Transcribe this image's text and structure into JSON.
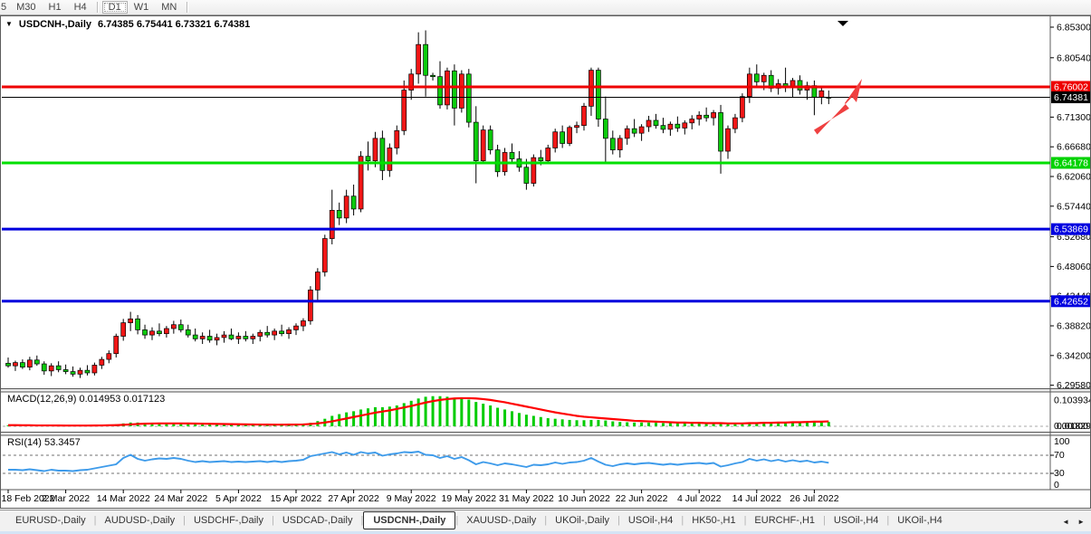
{
  "toolbar": {
    "timeframes": [
      "5",
      "M30",
      "H1",
      "H4",
      "D1",
      "W1",
      "MN"
    ],
    "active": "D1"
  },
  "window": {
    "dropdown_marker": "▼",
    "title_symbol": "USDCNH-,Daily",
    "title_ohlc": "6.74385 6.75441 6.73321 6.74381"
  },
  "price_axis": {
    "ticks": [
      6.853,
      6.8054,
      6.713,
      6.6668,
      6.6206,
      6.5744,
      6.5268,
      6.4806,
      6.4344,
      6.3882,
      6.342,
      6.2958
    ],
    "badges": [
      {
        "label": "6.76002",
        "value": 6.76002,
        "bg": "#ee0000",
        "fg": "#ffffff"
      },
      {
        "label": "6.74381",
        "value": 6.74381,
        "bg": "#000000",
        "fg": "#ffffff"
      },
      {
        "label": "6.64178",
        "value": 6.64178,
        "bg": "#00d200",
        "fg": "#ffffff"
      },
      {
        "label": "6.53869",
        "value": 6.53869,
        "bg": "#0000e0",
        "fg": "#ffffff"
      },
      {
        "label": "6.42652",
        "value": 6.42652,
        "bg": "#0000e0",
        "fg": "#ffffff"
      }
    ]
  },
  "hlines": [
    {
      "value": 6.76002,
      "color": "#ee0000",
      "width": 3,
      "name": "resistance-line"
    },
    {
      "value": 6.74381,
      "color": "#000000",
      "width": 1,
      "name": "current-price-line"
    },
    {
      "value": 6.64178,
      "color": "#00e000",
      "width": 3,
      "name": "support-line-1"
    },
    {
      "value": 6.53869,
      "color": "#0000dd",
      "width": 3,
      "name": "support-line-2"
    },
    {
      "value": 6.42652,
      "color": "#0000dd",
      "width": 3,
      "name": "support-line-3"
    }
  ],
  "chart_data": {
    "type": "candlestick",
    "symbol": "USDCNH-",
    "timeframe": "Daily",
    "ohlc_current": {
      "open": 6.74385,
      "high": 6.75441,
      "low": 6.73321,
      "close": 6.74381
    },
    "up_color": "#f21616",
    "down_color": "#0ccb0c",
    "y_range": [
      6.2958,
      6.853
    ],
    "x_labels": [
      "18 Feb 2022",
      "2 Mar 2022",
      "14 Mar 2022",
      "24 Mar 2022",
      "5 Apr 2022",
      "15 Apr 2022",
      "27 Apr 2022",
      "9 May 2022",
      "19 May 2022",
      "31 May 2022",
      "10 Jun 2022",
      "22 Jun 2022",
      "4 Jul 2022",
      "14 Jul 2022",
      "26 Jul 2022"
    ],
    "candles": [
      [
        6.33,
        6.339,
        6.323,
        6.326
      ],
      [
        6.326,
        6.334,
        6.318,
        6.331
      ],
      [
        6.331,
        6.336,
        6.321,
        6.324
      ],
      [
        6.324,
        6.34,
        6.319,
        6.335
      ],
      [
        6.335,
        6.342,
        6.326,
        6.329
      ],
      [
        6.329,
        6.333,
        6.312,
        6.318
      ],
      [
        6.318,
        6.33,
        6.31,
        6.326
      ],
      [
        6.326,
        6.333,
        6.316,
        6.32
      ],
      [
        6.32,
        6.328,
        6.313,
        6.317
      ],
      [
        6.317,
        6.325,
        6.309,
        6.313
      ],
      [
        6.313,
        6.323,
        6.307,
        6.319
      ],
      [
        6.319,
        6.327,
        6.311,
        6.315
      ],
      [
        6.315,
        6.331,
        6.311,
        6.327
      ],
      [
        6.327,
        6.34,
        6.321,
        6.336
      ],
      [
        6.336,
        6.35,
        6.33,
        6.345
      ],
      [
        6.345,
        6.376,
        6.339,
        6.372
      ],
      [
        6.372,
        6.399,
        6.365,
        6.393
      ],
      [
        6.393,
        6.41,
        6.38,
        6.399
      ],
      [
        6.399,
        6.405,
        6.375,
        6.382
      ],
      [
        6.382,
        6.39,
        6.368,
        6.374
      ],
      [
        6.374,
        6.386,
        6.366,
        6.38
      ],
      [
        6.38,
        6.392,
        6.372,
        6.376
      ],
      [
        6.376,
        6.388,
        6.37,
        6.384
      ],
      [
        6.384,
        6.396,
        6.376,
        6.39
      ],
      [
        6.39,
        6.398,
        6.378,
        6.382
      ],
      [
        6.382,
        6.39,
        6.37,
        6.374
      ],
      [
        6.374,
        6.384,
        6.364,
        6.368
      ],
      [
        6.368,
        6.378,
        6.36,
        6.372
      ],
      [
        6.372,
        6.382,
        6.362,
        6.366
      ],
      [
        6.366,
        6.376,
        6.358,
        6.37
      ],
      [
        6.37,
        6.38,
        6.362,
        6.374
      ],
      [
        6.374,
        6.384,
        6.366,
        6.368
      ],
      [
        6.368,
        6.378,
        6.36,
        6.372
      ],
      [
        6.372,
        6.38,
        6.364,
        6.368
      ],
      [
        6.368,
        6.376,
        6.36,
        6.372
      ],
      [
        6.372,
        6.382,
        6.364,
        6.378
      ],
      [
        6.378,
        6.388,
        6.37,
        6.374
      ],
      [
        6.374,
        6.384,
        6.366,
        6.38
      ],
      [
        6.38,
        6.39,
        6.372,
        6.376
      ],
      [
        6.376,
        6.386,
        6.368,
        6.382
      ],
      [
        6.382,
        6.392,
        6.374,
        6.388
      ],
      [
        6.388,
        6.4,
        6.38,
        6.396
      ],
      [
        6.396,
        6.45,
        6.39,
        6.444
      ],
      [
        6.444,
        6.478,
        6.425,
        6.472
      ],
      [
        6.472,
        6.53,
        6.465,
        6.524
      ],
      [
        6.524,
        6.6,
        6.515,
        6.568
      ],
      [
        6.568,
        6.58,
        6.545,
        6.556
      ],
      [
        6.556,
        6.6,
        6.548,
        6.59
      ],
      [
        6.59,
        6.608,
        6.56,
        6.57
      ],
      [
        6.57,
        6.66,
        6.565,
        6.652
      ],
      [
        6.652,
        6.675,
        6.63,
        6.645
      ],
      [
        6.645,
        6.69,
        6.635,
        6.68
      ],
      [
        6.68,
        6.692,
        6.615,
        6.63
      ],
      [
        6.63,
        6.672,
        6.62,
        6.665
      ],
      [
        6.665,
        6.7,
        6.655,
        6.692
      ],
      [
        6.692,
        6.77,
        6.685,
        6.755
      ],
      [
        6.755,
        6.788,
        6.74,
        6.78
      ],
      [
        6.78,
        6.845,
        6.765,
        6.826
      ],
      [
        6.826,
        6.848,
        6.745,
        6.778
      ],
      [
        6.778,
        6.782,
        6.77,
        6.776
      ],
      [
        6.776,
        6.8,
        6.726,
        6.732
      ],
      [
        6.732,
        6.79,
        6.725,
        6.785
      ],
      [
        6.785,
        6.795,
        6.7,
        6.727
      ],
      [
        6.727,
        6.786,
        6.72,
        6.78
      ],
      [
        6.78,
        6.788,
        6.697,
        6.705
      ],
      [
        6.705,
        6.73,
        6.61,
        6.645
      ],
      [
        6.645,
        6.7,
        6.64,
        6.693
      ],
      [
        6.693,
        6.7,
        6.655,
        6.662
      ],
      [
        6.662,
        6.67,
        6.62,
        6.628
      ],
      [
        6.628,
        6.665,
        6.622,
        6.658
      ],
      [
        6.658,
        6.672,
        6.64,
        6.648
      ],
      [
        6.648,
        6.66,
        6.628,
        6.635
      ],
      [
        6.635,
        6.648,
        6.6,
        6.61
      ],
      [
        6.61,
        6.655,
        6.605,
        6.65
      ],
      [
        6.65,
        6.662,
        6.638,
        6.645
      ],
      [
        6.645,
        6.67,
        6.64,
        6.665
      ],
      [
        6.665,
        6.695,
        6.658,
        6.69
      ],
      [
        6.69,
        6.7,
        6.665,
        6.672
      ],
      [
        6.672,
        6.7,
        6.668,
        6.697
      ],
      [
        6.697,
        6.706,
        6.688,
        6.7
      ],
      [
        6.7,
        6.735,
        6.692,
        6.73
      ],
      [
        6.73,
        6.79,
        6.715,
        6.786
      ],
      [
        6.786,
        6.79,
        6.698,
        6.71
      ],
      [
        6.71,
        6.745,
        6.64,
        6.68
      ],
      [
        6.68,
        6.692,
        6.655,
        6.662
      ],
      [
        6.662,
        6.685,
        6.65,
        6.68
      ],
      [
        6.68,
        6.7,
        6.67,
        6.695
      ],
      [
        6.695,
        6.71,
        6.682,
        6.688
      ],
      [
        6.688,
        6.702,
        6.676,
        6.698
      ],
      [
        6.698,
        6.715,
        6.69,
        6.708
      ],
      [
        6.708,
        6.718,
        6.695,
        6.7
      ],
      [
        6.7,
        6.712,
        6.688,
        6.694
      ],
      [
        6.694,
        6.706,
        6.684,
        6.702
      ],
      [
        6.702,
        6.714,
        6.69,
        6.696
      ],
      [
        6.696,
        6.708,
        6.686,
        6.704
      ],
      [
        6.704,
        6.716,
        6.694,
        6.71
      ],
      [
        6.71,
        6.722,
        6.7,
        6.716
      ],
      [
        6.716,
        6.728,
        6.706,
        6.712
      ],
      [
        6.712,
        6.724,
        6.7,
        6.72
      ],
      [
        6.72,
        6.732,
        6.625,
        6.66
      ],
      [
        6.66,
        6.7,
        6.648,
        6.695
      ],
      [
        6.695,
        6.718,
        6.688,
        6.712
      ],
      [
        6.712,
        6.75,
        6.705,
        6.745
      ],
      [
        6.745,
        6.79,
        6.735,
        6.78
      ],
      [
        6.78,
        6.795,
        6.76,
        6.768
      ],
      [
        6.768,
        6.782,
        6.755,
        6.778
      ],
      [
        6.778,
        6.786,
        6.752,
        6.758
      ],
      [
        6.758,
        6.772,
        6.748,
        6.765
      ],
      [
        6.765,
        6.79,
        6.752,
        6.76
      ],
      [
        6.76,
        6.774,
        6.744,
        6.77
      ],
      [
        6.77,
        6.778,
        6.748,
        6.755
      ],
      [
        6.755,
        6.768,
        6.74,
        6.762
      ],
      [
        6.762,
        6.77,
        6.716,
        6.744
      ],
      [
        6.744,
        6.758,
        6.733,
        6.754
      ],
      [
        6.74385,
        6.75441,
        6.73321,
        6.74381
      ]
    ]
  },
  "macd": {
    "label": "MACD(12,26,9) 0.014953 0.017123",
    "main_value": 0.014953,
    "signal_value": 0.017123,
    "axis_max": "0.103934",
    "axis_zero": "0.00000",
    "axis_badge": "0.01829",
    "hist_color": "#00cc00",
    "signal_color": "#ff0000",
    "histogram": [
      0.003,
      0.004,
      0.003,
      0.004,
      0.003,
      0.002,
      0.003,
      0.002,
      0.002,
      0.002,
      0.002,
      0.003,
      0.003,
      0.004,
      0.005,
      0.007,
      0.01,
      0.013,
      0.013,
      0.012,
      0.011,
      0.01,
      0.01,
      0.01,
      0.01,
      0.009,
      0.008,
      0.007,
      0.006,
      0.006,
      0.005,
      0.005,
      0.005,
      0.004,
      0.004,
      0.004,
      0.004,
      0.005,
      0.005,
      0.005,
      0.006,
      0.007,
      0.012,
      0.018,
      0.026,
      0.036,
      0.042,
      0.048,
      0.052,
      0.058,
      0.062,
      0.066,
      0.066,
      0.068,
      0.072,
      0.08,
      0.088,
      0.096,
      0.102,
      0.104,
      0.104,
      0.102,
      0.098,
      0.096,
      0.092,
      0.084,
      0.078,
      0.072,
      0.064,
      0.058,
      0.052,
      0.046,
      0.04,
      0.036,
      0.032,
      0.028,
      0.026,
      0.024,
      0.022,
      0.021,
      0.021,
      0.022,
      0.022,
      0.02,
      0.017,
      0.015,
      0.014,
      0.013,
      0.013,
      0.013,
      0.012,
      0.011,
      0.011,
      0.01,
      0.01,
      0.01,
      0.01,
      0.01,
      0.01,
      0.009,
      0.008,
      0.008,
      0.01,
      0.012,
      0.013,
      0.014,
      0.014,
      0.014,
      0.015,
      0.015,
      0.015,
      0.015,
      0.015,
      0.015,
      0.015
    ],
    "signal": [
      0.004,
      0.004,
      0.0035,
      0.0035,
      0.003,
      0.003,
      0.003,
      0.0028,
      0.0026,
      0.0025,
      0.0025,
      0.0026,
      0.0028,
      0.003,
      0.0034,
      0.004,
      0.005,
      0.0065,
      0.008,
      0.009,
      0.0095,
      0.01,
      0.01,
      0.01,
      0.01,
      0.0098,
      0.0094,
      0.009,
      0.0086,
      0.0082,
      0.0078,
      0.0074,
      0.007,
      0.0066,
      0.0062,
      0.006,
      0.0058,
      0.0057,
      0.0057,
      0.0058,
      0.006,
      0.0064,
      0.008,
      0.01,
      0.013,
      0.017,
      0.022,
      0.027,
      0.032,
      0.037,
      0.042,
      0.047,
      0.051,
      0.055,
      0.06,
      0.065,
      0.07,
      0.076,
      0.082,
      0.087,
      0.091,
      0.094,
      0.096,
      0.097,
      0.097,
      0.096,
      0.094,
      0.091,
      0.087,
      0.083,
      0.078,
      0.073,
      0.068,
      0.063,
      0.058,
      0.053,
      0.048,
      0.044,
      0.04,
      0.036,
      0.033,
      0.031,
      0.029,
      0.027,
      0.025,
      0.023,
      0.021,
      0.019,
      0.018,
      0.017,
      0.016,
      0.015,
      0.014,
      0.013,
      0.013,
      0.012,
      0.012,
      0.011,
      0.011,
      0.011,
      0.01,
      0.01,
      0.01,
      0.011,
      0.011,
      0.012,
      0.012,
      0.013,
      0.013,
      0.014,
      0.014,
      0.015,
      0.016,
      0.016,
      0.017
    ]
  },
  "rsi": {
    "label": "RSI(14) 53.3457",
    "current": 53.3457,
    "levels": [
      "100",
      "70",
      "30",
      "0"
    ],
    "color": "#3e9bea",
    "series": [
      38,
      38,
      37,
      39,
      37,
      35,
      38,
      36,
      36,
      35,
      37,
      38,
      41,
      44,
      47,
      50,
      64,
      71,
      62,
      58,
      61,
      63,
      62,
      64,
      62,
      58,
      55,
      57,
      55,
      56,
      57,
      55,
      56,
      55,
      56,
      57,
      55,
      57,
      55,
      57,
      58,
      60,
      68,
      71,
      74,
      77,
      72,
      76,
      71,
      77,
      74,
      76,
      69,
      72,
      74,
      77,
      76,
      78,
      71,
      70,
      64,
      68,
      62,
      66,
      59,
      50,
      55,
      52,
      48,
      52,
      50,
      47,
      44,
      49,
      48,
      50,
      54,
      51,
      54,
      55,
      58,
      64,
      56,
      49,
      46,
      50,
      52,
      50,
      52,
      53,
      51,
      49,
      51,
      49,
      51,
      52,
      53,
      51,
      53,
      45,
      48,
      52,
      55,
      62,
      58,
      61,
      57,
      60,
      56,
      59,
      56,
      58,
      54,
      56,
      53.3
    ]
  },
  "markers": {
    "shift_marker": "▼",
    "arrow_color": "#ef4040"
  },
  "tabs": {
    "items": [
      "EURUSD-,Daily",
      "AUDUSD-,Daily",
      "USDCHF-,Daily",
      "USDCAD-,Daily",
      "USDCNH-,Daily",
      "XAUUSD-,Daily",
      "UKOil-,Daily",
      "USOil-,H4",
      "HK50-,H1",
      "EURCHF-,H1",
      "USOil-,H4",
      "UKOil-,H4"
    ],
    "active_index": 4,
    "separator": "|",
    "scroll_left": "◄",
    "scroll_right": "►"
  }
}
